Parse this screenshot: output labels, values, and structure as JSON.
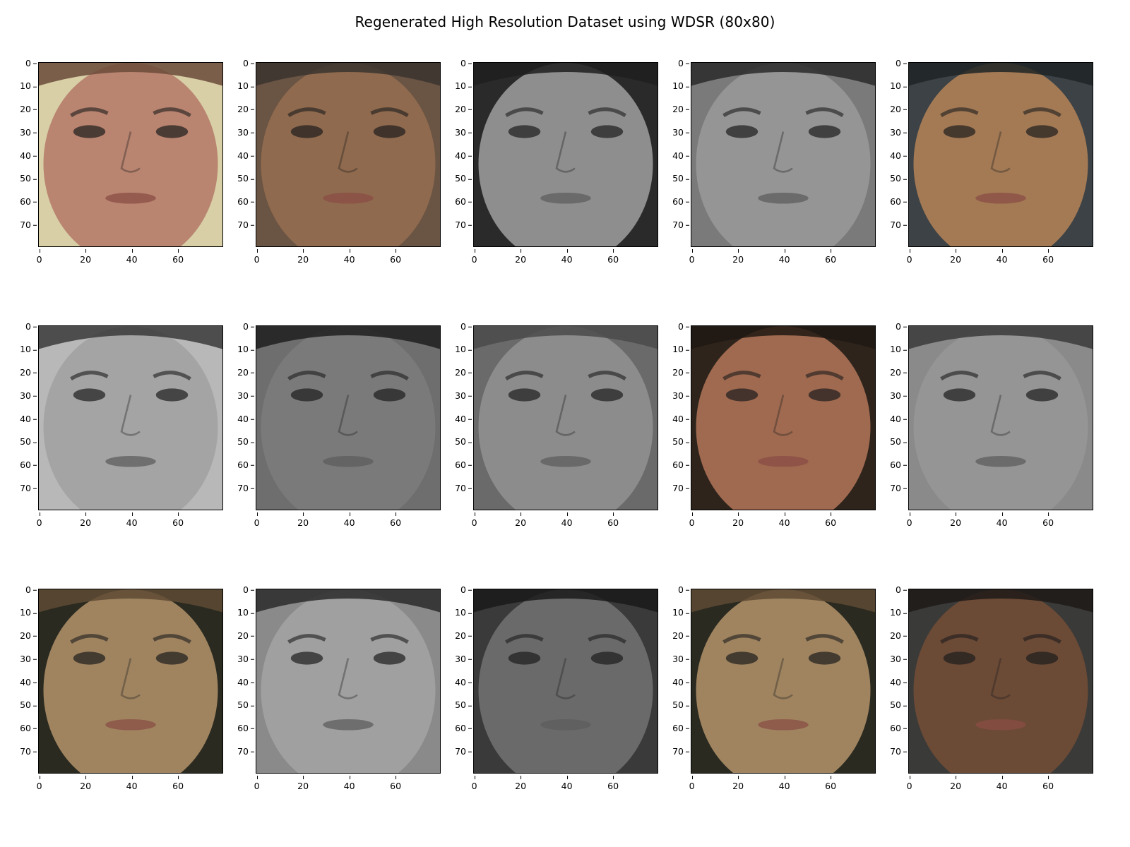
{
  "title": "Regenerated High Resolution Dataset using WDSR (80x80)",
  "axes": {
    "x_ticks": [
      "0",
      "20",
      "40",
      "60"
    ],
    "y_ticks": [
      "0",
      "10",
      "20",
      "30",
      "40",
      "50",
      "60",
      "70"
    ],
    "x_range": [
      0,
      80
    ],
    "y_range": [
      0,
      80
    ],
    "y_inverted": true
  },
  "grid": {
    "rows": 3,
    "cols": 5
  },
  "panels": [
    {
      "tone": "color",
      "skin": "#b98470",
      "bg": "#d8cfa6",
      "hair": "#6b4a3a"
    },
    {
      "tone": "color",
      "skin": "#8f6a4e",
      "bg": "#6a5444",
      "hair": "#3b342f"
    },
    {
      "tone": "gray",
      "skin": "#8e8e8e",
      "bg": "#2a2a2a",
      "hair": "#1e1e1e"
    },
    {
      "tone": "gray",
      "skin": "#959595",
      "bg": "#7a7a7a",
      "hair": "#2a2a2a"
    },
    {
      "tone": "color",
      "skin": "#a47a55",
      "bg": "#3c4245",
      "hair": "#1e2426"
    },
    {
      "tone": "gray",
      "skin": "#a4a4a4",
      "bg": "#b8b8b8",
      "hair": "#3a3a3a"
    },
    {
      "tone": "gray",
      "skin": "#7a7a7a",
      "bg": "#6e6e6e",
      "hair": "#1e1e1e"
    },
    {
      "tone": "gray",
      "skin": "#8c8c8c",
      "bg": "#6a6a6a",
      "hair": "#4a4a4a"
    },
    {
      "tone": "color",
      "skin": "#a06a50",
      "bg": "#2e241c",
      "hair": "#1f1712"
    },
    {
      "tone": "gray",
      "skin": "#959595",
      "bg": "#8a8a8a",
      "hair": "#3a3a3a"
    },
    {
      "tone": "color",
      "skin": "#a08460",
      "bg": "#2a2a20",
      "hair": "#5e4a34"
    },
    {
      "tone": "gray",
      "skin": "#a0a0a0",
      "bg": "#8a8a8a",
      "hair": "#2a2a2a"
    },
    {
      "tone": "gray",
      "skin": "#6a6a6a",
      "bg": "#3a3a3a",
      "hair": "#1a1a1a"
    },
    {
      "tone": "color",
      "skin": "#a08460",
      "bg": "#2a2a20",
      "hair": "#5e4a34"
    },
    {
      "tone": "color",
      "skin": "#6b4a36",
      "bg": "#3a3a38",
      "hair": "#1e1a18"
    }
  ]
}
